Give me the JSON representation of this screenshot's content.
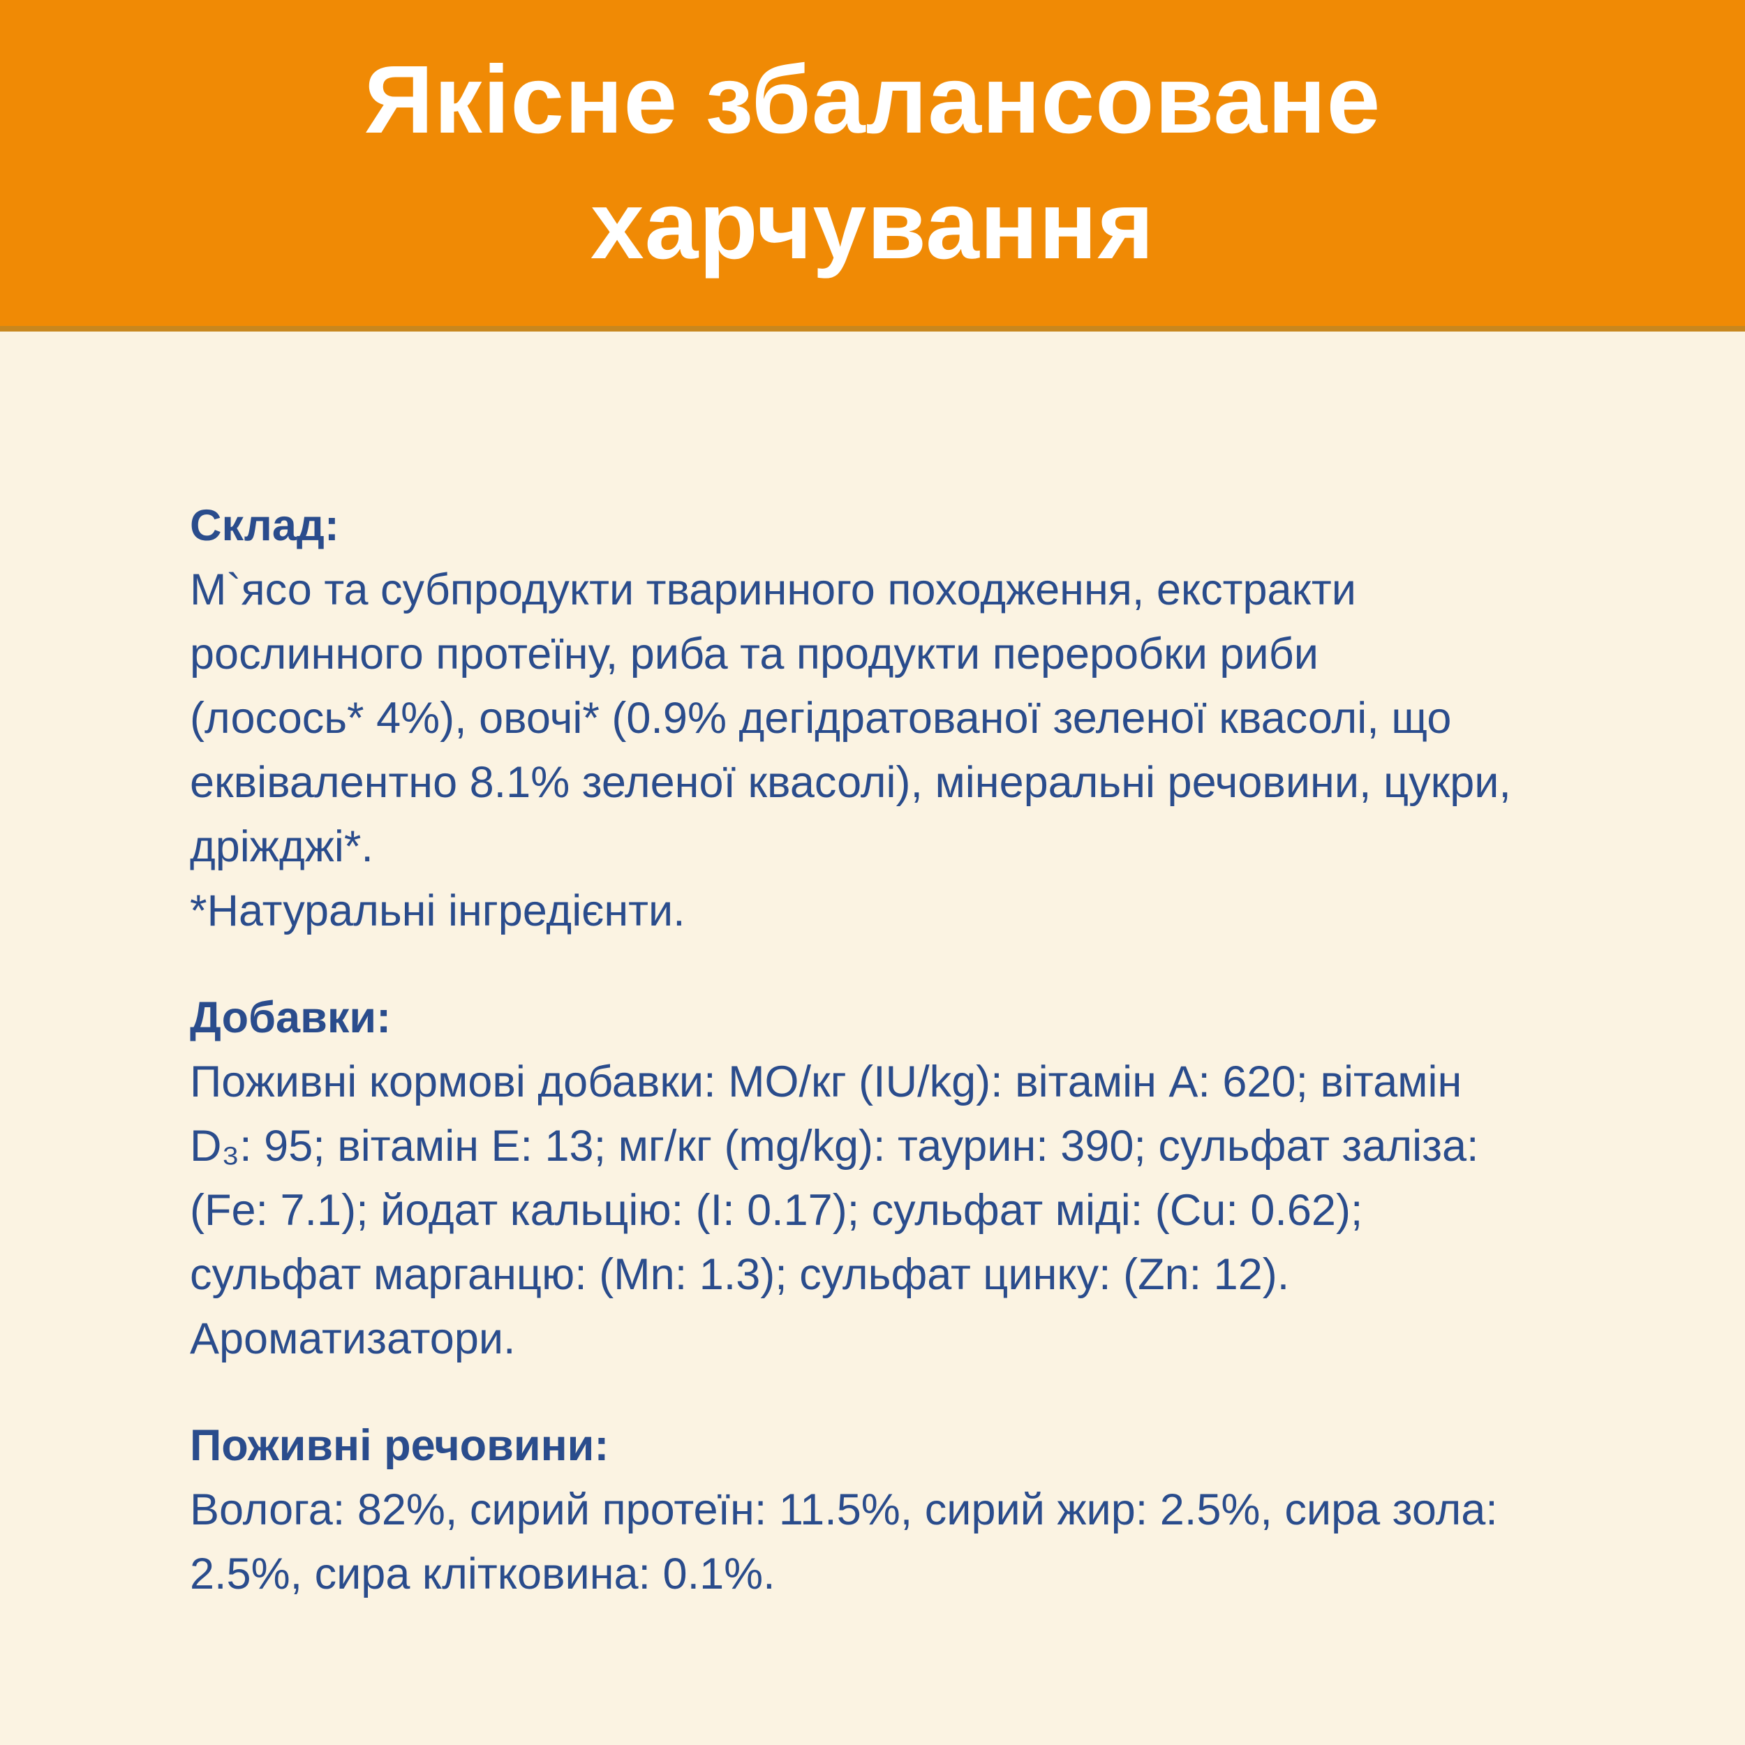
{
  "theme": {
    "band_bg": "#f08a05",
    "band_edge": "#c8871f",
    "page_bg": "#fbf3e2",
    "title_color": "#ffffff",
    "text_color": "#2a4c8c"
  },
  "header": {
    "title_line1": "Якісне збалансоване",
    "title_line2": "харчування"
  },
  "body": {
    "sections": [
      {
        "id": "composition",
        "heading": "Склад:",
        "lines": [
          "М`ясо та субпродукти тваринного походження, екстракти",
          "рослинного протеїну, риба та продукти переробки риби",
          "(лосось* 4%), овочі* (0.9% дегідратованої зеленої квасолі, що",
          "еквівалентно 8.1% зеленої квасолі), мінеральні речовини, цукри,",
          "дріжджі*.",
          "*Натуральні інгредієнти."
        ]
      },
      {
        "id": "additives",
        "heading": "Добавки:",
        "lines": [
          "Поживні кормові добавки: МО/кг (IU/kg): вітамін А: 620; вітамін",
          "D₃: 95; вітамін Е: 13; мг/кг (mg/kg): таурин: 390; сульфат заліза:",
          "(Fe: 7.1); йодат кальцію: (I: 0.17); сульфат міді: (Cu: 0.62);",
          "сульфат марганцю: (Mn: 1.3); сульфат цинку: (Zn: 12).",
          "Ароматизатори."
        ]
      },
      {
        "id": "nutrients",
        "heading": "Поживні речовини:",
        "lines": [
          "Волога: 82%, сирий протеїн: 11.5%, сирий жир: 2.5%, сира зола:",
          "2.5%, сира клітковина: 0.1%."
        ]
      }
    ]
  }
}
